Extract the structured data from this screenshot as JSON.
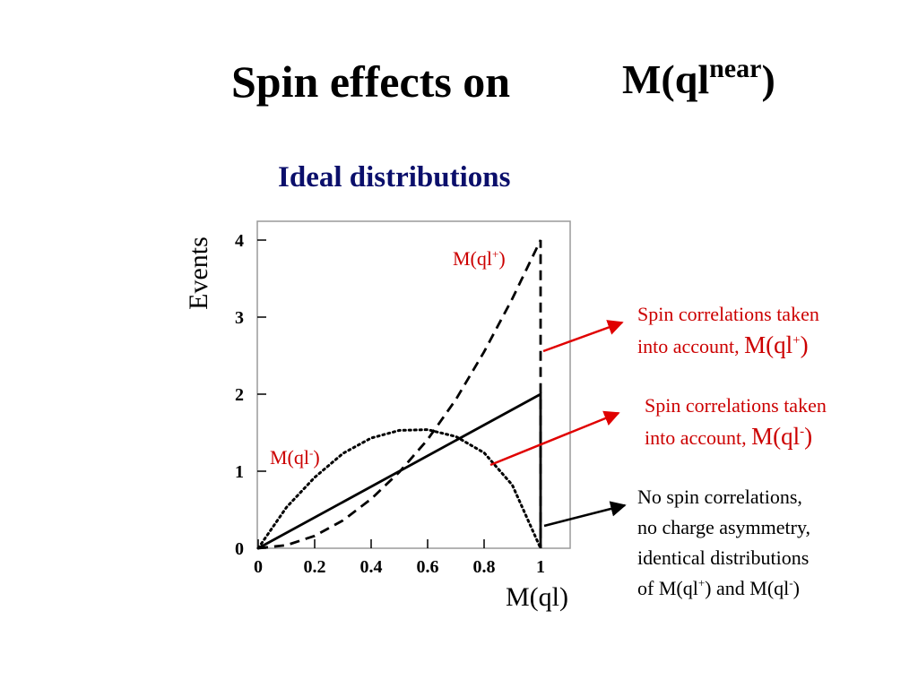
{
  "slide": {
    "title": "Spin effects on",
    "title_formula": "M(ql",
    "title_formula_sup": "near",
    "title_formula_close": ")",
    "subtitle": "Ideal  distributions"
  },
  "annotations": {
    "note_plus": {
      "line1": "Spin correlations taken",
      "line2_prefix": "into account, ",
      "formula": "M(ql",
      "sup": "+",
      "close": ")"
    },
    "note_minus": {
      "line1": "Spin correlations taken",
      "line2_prefix": "into account, ",
      "formula": "M(ql",
      "sup": "-",
      "close": ")"
    },
    "note_none": {
      "line1": "No spin correlations,",
      "line2": "no charge asymmetry,",
      "line3": "identical distributions",
      "line4_a": "of M(ql",
      "line4_sup1": "+",
      "line4_b": ") and M(ql",
      "line4_sup2": "-",
      "line4_c": ")"
    }
  },
  "colors": {
    "accent_red": "#cc0000",
    "subtitle_blue": "#0b0f6b",
    "curve": "#000000"
  },
  "chart_data": {
    "type": "line",
    "xlabel": "M(ql)",
    "ylabel": "Events",
    "xlim": [
      0,
      1.1
    ],
    "ylim": [
      0,
      4.2
    ],
    "x_ticks": [
      "0",
      "0.2",
      "0.4",
      "0.6",
      "0.8",
      "1"
    ],
    "y_ticks": [
      "0",
      "1",
      "2",
      "3",
      "4"
    ],
    "series": [
      {
        "name": "M(ql",
        "name_sup": "+",
        "name_close": ")",
        "style": "dashed",
        "x": [
          0,
          0.1,
          0.2,
          0.3,
          0.4,
          0.5,
          0.6,
          0.7,
          0.8,
          0.9,
          1.0
        ],
        "y": [
          0,
          0.04,
          0.16,
          0.36,
          0.64,
          0.99,
          1.41,
          1.93,
          2.55,
          3.24,
          4.0
        ]
      },
      {
        "name": "M(ql",
        "name_sup": "-",
        "name_close": ")",
        "style": "dotted",
        "x": [
          0,
          0.1,
          0.2,
          0.3,
          0.4,
          0.5,
          0.6,
          0.7,
          0.8,
          0.9,
          1.0
        ],
        "y": [
          0,
          0.53,
          0.92,
          1.23,
          1.43,
          1.53,
          1.54,
          1.45,
          1.24,
          0.82,
          0
        ]
      },
      {
        "name": "",
        "style": "solid",
        "x": [
          0,
          1.0
        ],
        "y": [
          0,
          2.0
        ]
      }
    ],
    "grid": false,
    "legend": "none"
  }
}
